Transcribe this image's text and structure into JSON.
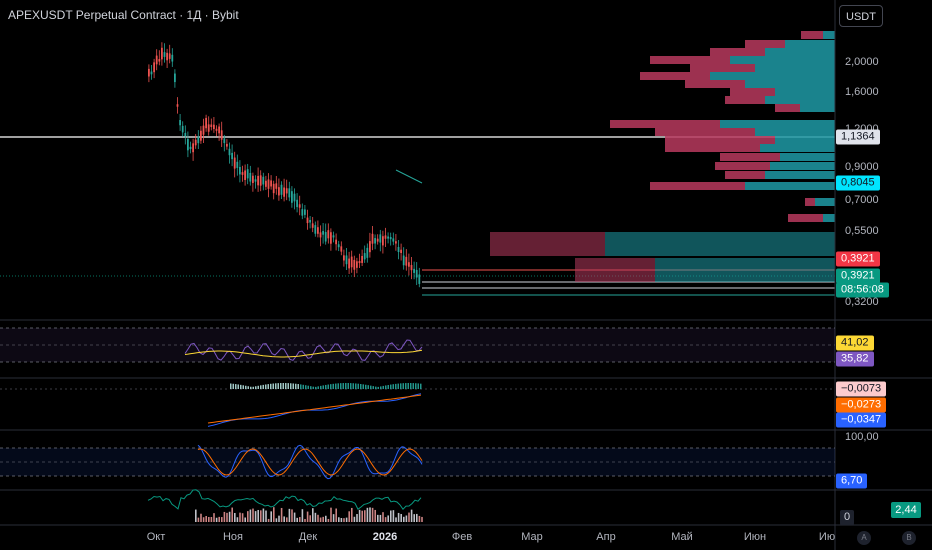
{
  "header": {
    "title": "APEXUSDT Perpetual Contract · 1Д · Bybit",
    "currency": "USDT"
  },
  "price_axis": {
    "ticks": [
      "2,0000",
      "1,6000",
      "1,2000",
      "0,9000",
      "0,7000",
      "0,5500",
      "0,3200"
    ],
    "last_price": "0,3921",
    "countdown": "08:56:08",
    "red_line_price": "0,3921",
    "white_line_price": "1,1364",
    "cyan_price": "0,8045"
  },
  "time_axis": {
    "labels": [
      "Окт",
      "Ноя",
      "Дек",
      "2026",
      "Фев",
      "Мар",
      "Апр",
      "Май",
      "Июн",
      "Ию"
    ],
    "bold_label": "2026"
  },
  "rsi_panel": {
    "rsi_ma": "41,02",
    "rsi": "35,82"
  },
  "macd_panel": {
    "histogram": "−0,0073",
    "signal": "−0,0273",
    "macd": "−0,0347"
  },
  "stoch_panel": {
    "top": "100,00",
    "value": "6,70"
  },
  "volume_panel": {
    "zero": "0",
    "value": "2,44"
  },
  "icons": {
    "auto": "A",
    "log": "B"
  },
  "colors": {
    "up": "#26a69a",
    "down": "#ef5350",
    "accent_teal": "#089981",
    "profile_up": "#1e9aa6",
    "profile_down": "#b83a5e"
  }
}
